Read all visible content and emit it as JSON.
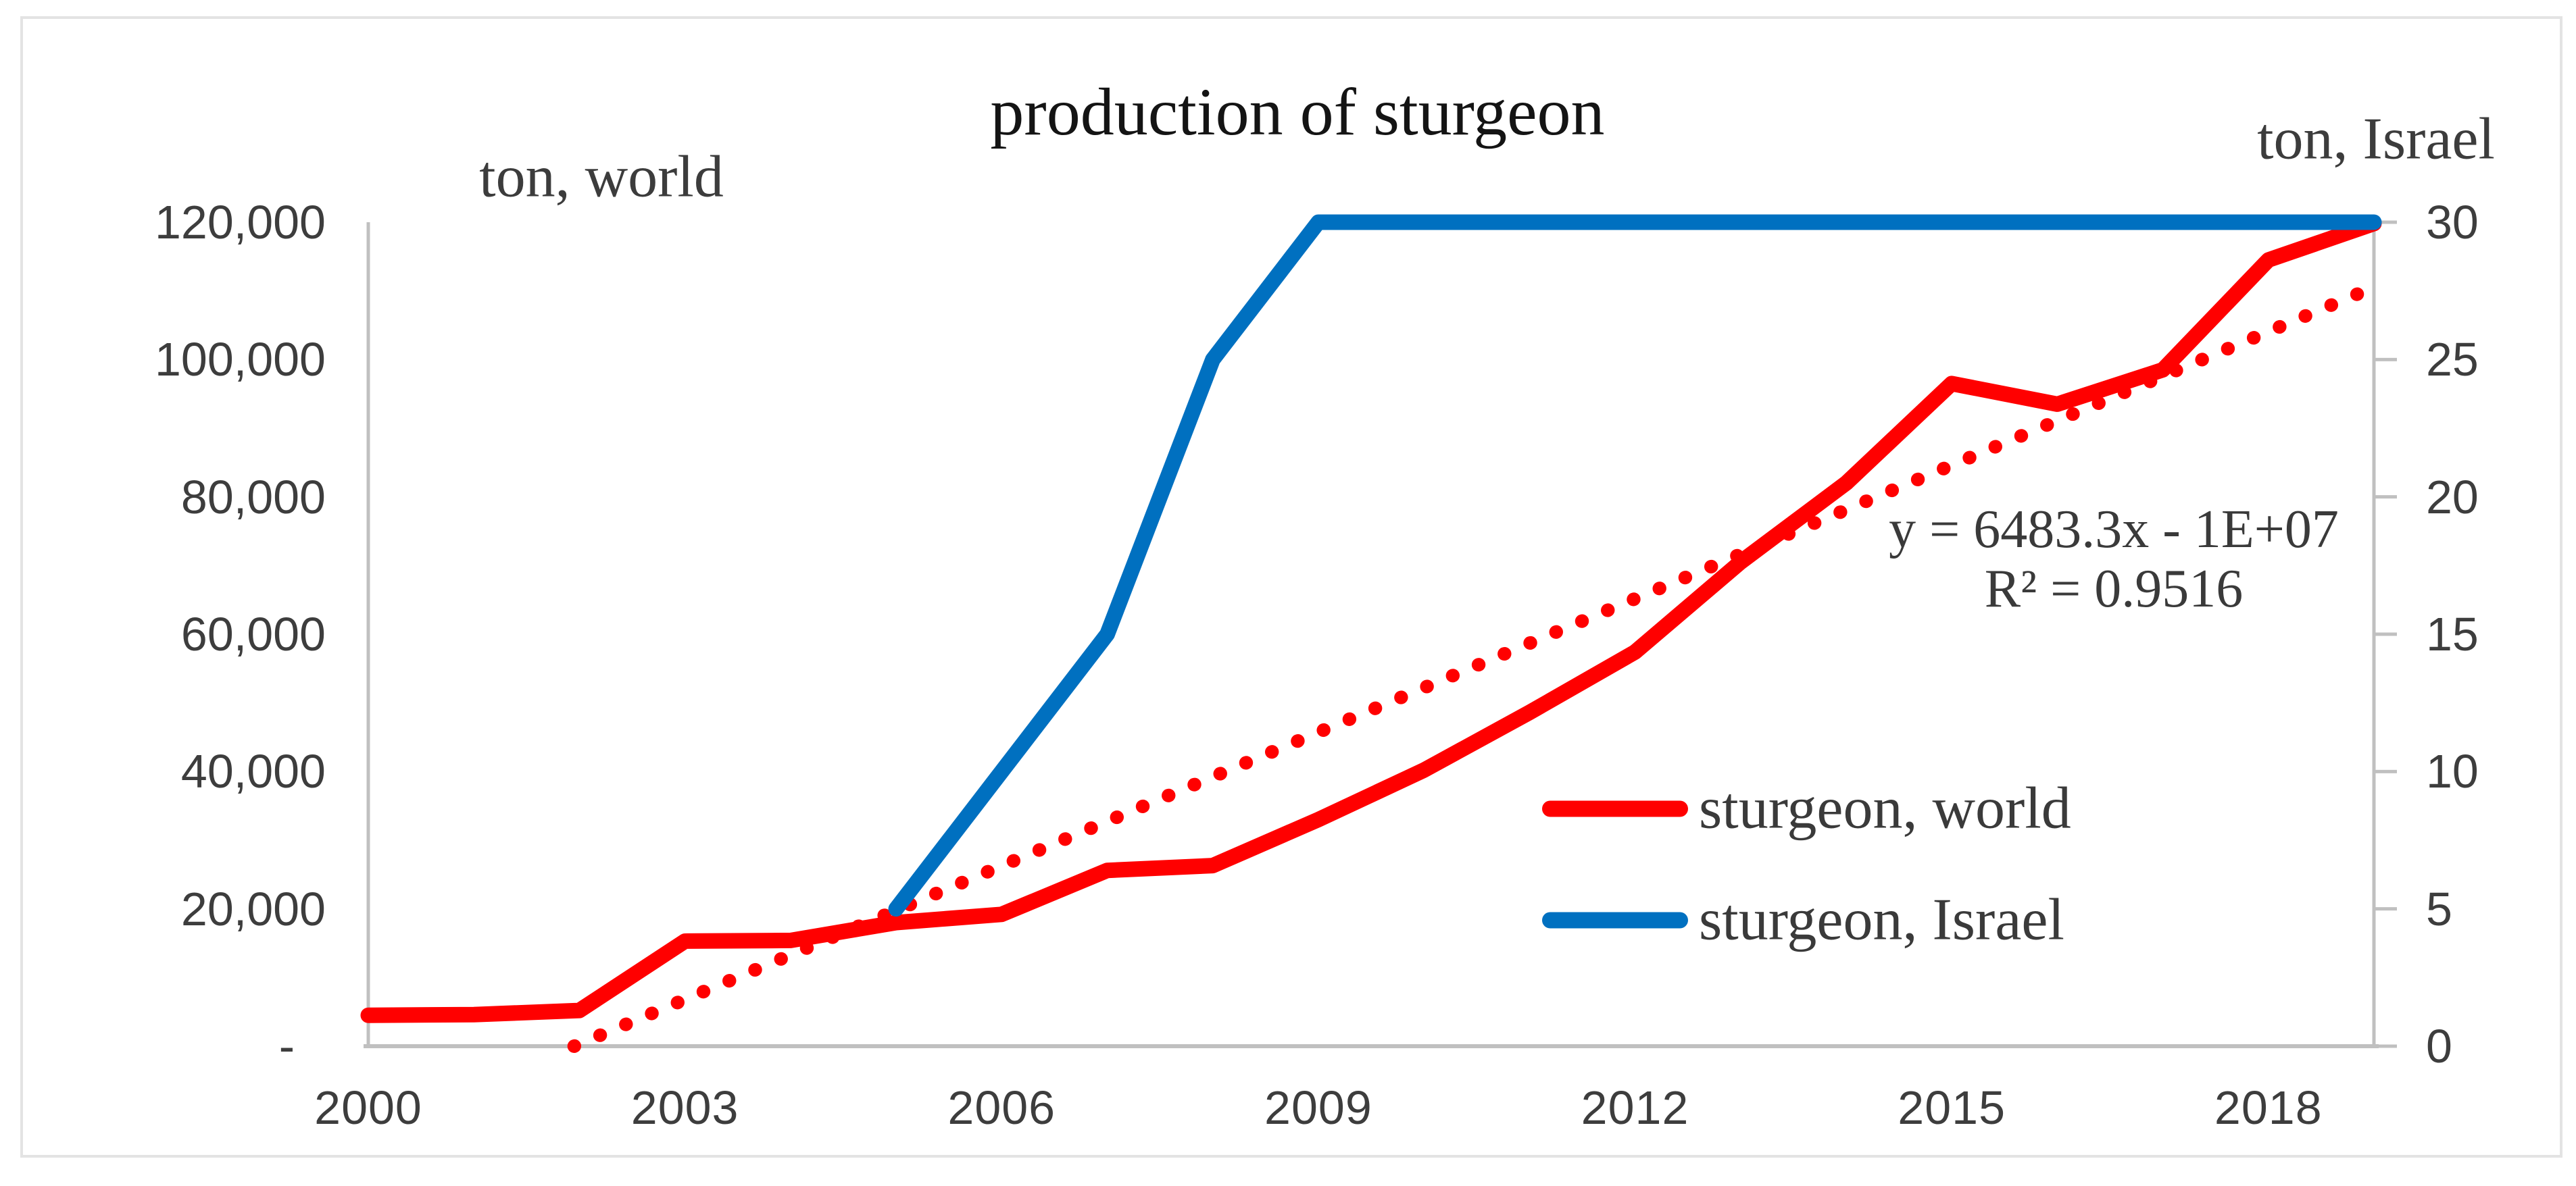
{
  "figure": {
    "title": "production of sturgeon",
    "left_axis_unit": "ton, world",
    "right_axis_unit": "ton, Israel"
  },
  "axes": {
    "left_tick_labels": [
      "120,000",
      "100,000",
      "80,000",
      "60,000",
      "40,000",
      "20,000",
      "-"
    ],
    "right_tick_labels": [
      "30",
      "25",
      "20",
      "15",
      "10",
      "5",
      "0"
    ],
    "x_tick_labels": [
      "2000",
      "2003",
      "2006",
      "2009",
      "2012",
      "2015",
      "2018"
    ]
  },
  "legend": {
    "items": [
      {
        "label": "sturgeon, world",
        "color": "#FF0000"
      },
      {
        "label": "sturgeon, Israel",
        "color": "#0070C0"
      }
    ]
  },
  "annotation": {
    "equation": "y = 6483.3x - 1E+07",
    "r_squared": "R² = 0.9516"
  },
  "colors": {
    "world_series": "#FF0000",
    "israel_series": "#0070C0",
    "trendline": "#FF0000",
    "axis_line": "#C0C0C0",
    "tick_text": "#3d3d3d"
  },
  "chart_data": {
    "type": "line",
    "title": "production of sturgeon",
    "x": [
      2000,
      2001,
      2002,
      2003,
      2004,
      2005,
      2006,
      2007,
      2008,
      2009,
      2010,
      2011,
      2012,
      2013,
      2014,
      2015,
      2016,
      2017,
      2018,
      2019
    ],
    "series": [
      {
        "name": "sturgeon, world",
        "axis": "left",
        "color": "#FF0000",
        "style": "solid",
        "values": [
          4500,
          4600,
          5200,
          15300,
          15400,
          18000,
          19200,
          25600,
          26300,
          33000,
          40200,
          48600,
          57400,
          70500,
          82000,
          96500,
          93500,
          98500,
          114500,
          119800
        ]
      },
      {
        "name": "sturgeon, Israel",
        "axis": "right",
        "color": "#0070C0",
        "style": "solid",
        "x": [
          2005,
          2006,
          2007,
          2008,
          2009,
          2010,
          2011,
          2012,
          2013,
          2014,
          2015,
          2016,
          2017,
          2018,
          2019
        ],
        "values": [
          5,
          10,
          15,
          25,
          30,
          30,
          30,
          30,
          30,
          30,
          30,
          30,
          30,
          30,
          30
        ]
      },
      {
        "name": "linear trend (sturgeon, world)",
        "axis": "left",
        "color": "#FF0000",
        "style": "dotted",
        "x": [
          2001.95,
          2019
        ],
        "values": [
          0,
          110550
        ]
      }
    ],
    "left_axis": {
      "label": "ton, world",
      "min": 0,
      "max": 120000,
      "tick_step": 20000
    },
    "right_axis": {
      "label": "ton, Israel",
      "min": 0,
      "max": 30,
      "tick_step": 5
    },
    "x_axis": {
      "min": 2000,
      "max": 2019,
      "labeled_ticks": [
        2000,
        2003,
        2006,
        2009,
        2012,
        2015,
        2018
      ]
    },
    "grid": false,
    "legend_position": "inside lower right",
    "trendline_equation": "y = 6483.3x - 1E+07",
    "r_squared": 0.9516
  }
}
